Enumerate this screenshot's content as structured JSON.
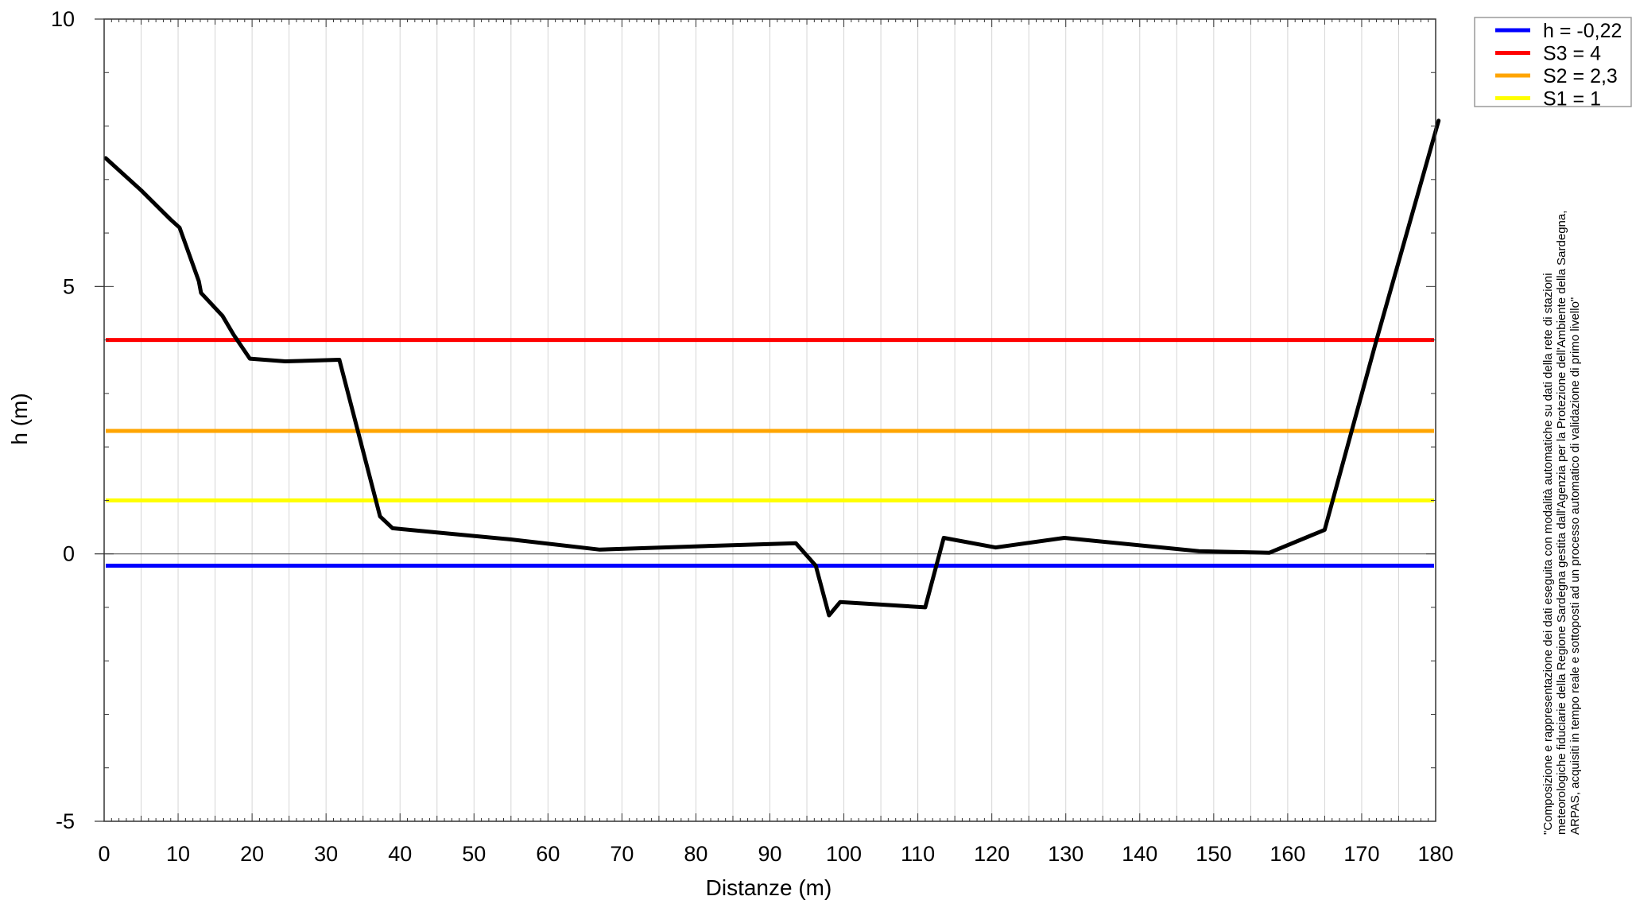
{
  "chart_data": {
    "type": "line",
    "xlabel": "Distanze (m)",
    "ylabel": "h (m)",
    "xlim": [
      0,
      180
    ],
    "ylim": [
      -5,
      10
    ],
    "xticks": [
      0,
      10,
      20,
      30,
      40,
      50,
      60,
      70,
      80,
      90,
      100,
      110,
      120,
      130,
      140,
      150,
      160,
      170,
      180
    ],
    "yticks": [
      -5,
      0,
      5,
      10
    ],
    "minor_x_step": 1,
    "minor_y_step": 1,
    "grid": "vertical lines every 5 m",
    "legend_position": "top-right outside",
    "thresholds": [
      {
        "name": "h = -0,22",
        "value": -0.22,
        "color": "#0000ff"
      },
      {
        "name": "S3 = 4",
        "value": 4,
        "color": "#ff0000"
      },
      {
        "name": "S2 = 2,3",
        "value": 2.3,
        "color": "#ffa500"
      },
      {
        "name": "S1 = 1",
        "value": 1,
        "color": "#ffff00"
      }
    ],
    "profile": {
      "color": "#000000",
      "points": [
        [
          0.2,
          7.4
        ],
        [
          5,
          6.8
        ],
        [
          9,
          6.25
        ],
        [
          10.2,
          6.1
        ],
        [
          12.8,
          5.1
        ],
        [
          13.1,
          4.88
        ],
        [
          16,
          4.45
        ],
        [
          17.5,
          4.1
        ],
        [
          19.7,
          3.65
        ],
        [
          24.5,
          3.6
        ],
        [
          31.8,
          3.63
        ],
        [
          37.3,
          0.7
        ],
        [
          39,
          0.48
        ],
        [
          45,
          0.4
        ],
        [
          55,
          0.27
        ],
        [
          67,
          0.08
        ],
        [
          80,
          0.14
        ],
        [
          93.5,
          0.2
        ],
        [
          96.2,
          -0.22
        ],
        [
          98,
          -1.15
        ],
        [
          99.5,
          -0.9
        ],
        [
          111,
          -1.0
        ],
        [
          113.5,
          0.3
        ],
        [
          120.5,
          0.12
        ],
        [
          129.8,
          0.3
        ],
        [
          148,
          0.05
        ],
        [
          157.5,
          0.02
        ],
        [
          165,
          0.45
        ],
        [
          172,
          4.0
        ],
        [
          180.4,
          8.1
        ]
      ]
    },
    "note": [
      "\"Composizione e rappresentazione dei dati eseguita con modalità automatiche su dati della rete di stazioni",
      "meteorologiche fiduciarie della Regione Sardegna gestita dall'Agenzia per la Protezione dell'Ambiente della Sardegna,",
      "ARPAS, acquisiti in tempo reale e sottoposti ad un processo automatico di validazione di primo livello\""
    ]
  }
}
